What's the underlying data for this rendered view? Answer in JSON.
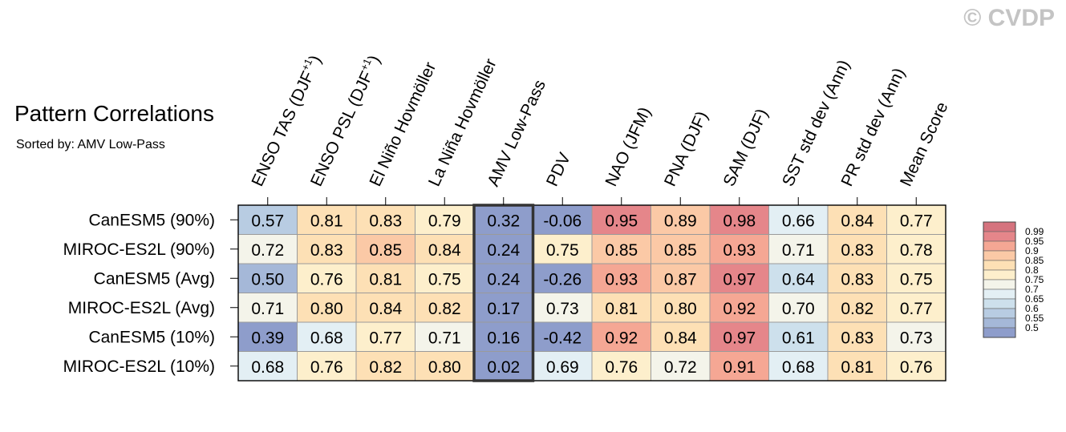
{
  "watermark": "© CVDP",
  "chart_data": {
    "type": "heatmap",
    "title": "Pattern Correlations",
    "subtitle": "Sorted by: AMV Low-Pass",
    "columns": [
      "ENSO TAS (DJF+1)",
      "ENSO PSL (DJF+1)",
      "El Niño Hovmöller",
      "La Niña Hovmöller",
      "AMV Low-Pass",
      "PDV",
      "NAO (JFM)",
      "PNA (DJF)",
      "SAM (DJF)",
      "SST std dev (Ann)",
      "PR std dev (Ann)",
      "Mean Score"
    ],
    "rows": [
      "CanESM5 (90%)",
      "MIROC-ES2L (90%)",
      "CanESM5 (Avg)",
      "MIROC-ES2L (Avg)",
      "CanESM5 (10%)",
      "MIROC-ES2L (10%)"
    ],
    "values": [
      [
        0.57,
        0.81,
        0.83,
        0.79,
        0.32,
        -0.06,
        0.95,
        0.89,
        0.98,
        0.66,
        0.84,
        0.77
      ],
      [
        0.72,
        0.83,
        0.85,
        0.84,
        0.24,
        0.75,
        0.85,
        0.85,
        0.93,
        0.71,
        0.83,
        0.78
      ],
      [
        0.5,
        0.76,
        0.81,
        0.75,
        0.24,
        -0.26,
        0.93,
        0.87,
        0.97,
        0.64,
        0.83,
        0.75
      ],
      [
        0.71,
        0.8,
        0.84,
        0.82,
        0.17,
        0.73,
        0.81,
        0.8,
        0.92,
        0.7,
        0.82,
        0.77
      ],
      [
        0.39,
        0.68,
        0.77,
        0.71,
        0.16,
        -0.42,
        0.92,
        0.84,
        0.97,
        0.61,
        0.83,
        0.73
      ],
      [
        0.68,
        0.76,
        0.82,
        0.8,
        0.02,
        0.69,
        0.76,
        0.72,
        0.91,
        0.68,
        0.81,
        0.76
      ]
    ],
    "labels": [
      [
        "0.57",
        "0.81",
        "0.83",
        "0.79",
        "0.32",
        "-0.06",
        "0.95",
        "0.89",
        "0.98",
        "0.66",
        "0.84",
        "0.77"
      ],
      [
        "0.72",
        "0.83",
        "0.85",
        "0.84",
        "0.24",
        "0.75",
        "0.85",
        "0.85",
        "0.93",
        "0.71",
        "0.83",
        "0.78"
      ],
      [
        "0.50",
        "0.76",
        "0.81",
        "0.75",
        "0.24",
        "-0.26",
        "0.93",
        "0.87",
        "0.97",
        "0.64",
        "0.83",
        "0.75"
      ],
      [
        "0.71",
        "0.80",
        "0.84",
        "0.82",
        "0.17",
        "0.73",
        "0.81",
        "0.80",
        "0.92",
        "0.70",
        "0.82",
        "0.77"
      ],
      [
        "0.39",
        "0.68",
        "0.77",
        "0.71",
        "0.16",
        "-0.42",
        "0.92",
        "0.84",
        "0.97",
        "0.61",
        "0.83",
        "0.73"
      ],
      [
        "0.68",
        "0.76",
        "0.82",
        "0.80",
        "0.02",
        "0.69",
        "0.76",
        "0.72",
        "0.91",
        "0.68",
        "0.81",
        "0.76"
      ]
    ],
    "highlighted_column": "AMV Low-Pass",
    "colorbar": {
      "levels": [
        0.5,
        0.55,
        0.6,
        0.65,
        0.7,
        0.75,
        0.8,
        0.85,
        0.9,
        0.95,
        0.99
      ],
      "labels": [
        "0.5",
        "0.55",
        "0.6",
        "0.65",
        "0.7",
        "0.75",
        "0.8",
        "0.85",
        "0.9",
        "0.95",
        "0.99"
      ],
      "colors": [
        "#8e9dcb",
        "#a5b8d8",
        "#b8cce2",
        "#cde0ec",
        "#e3eff4",
        "#f4f4ea",
        "#fdefcc",
        "#fde0b5",
        "#fbc9a6",
        "#f5a794",
        "#e5868a",
        "#d5737e"
      ]
    }
  }
}
